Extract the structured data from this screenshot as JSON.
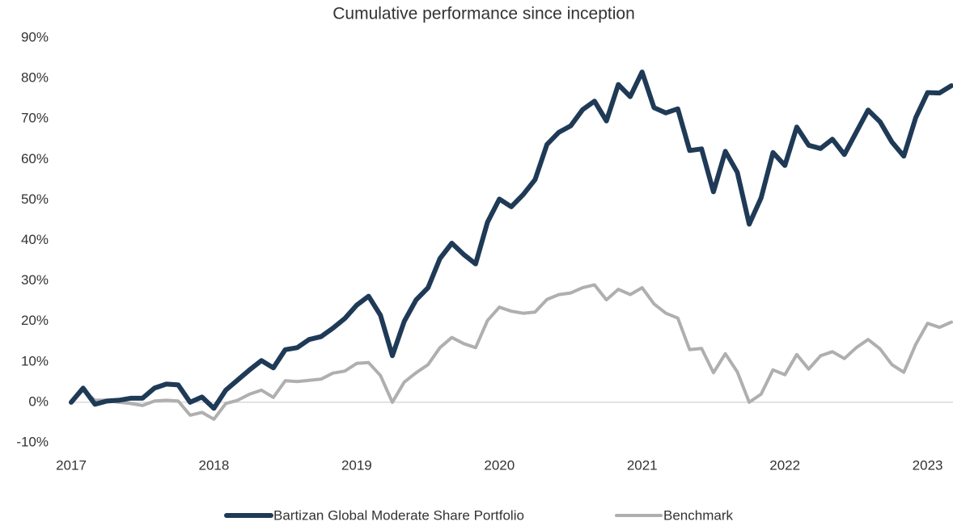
{
  "chart_data": {
    "type": "line",
    "title": "Cumulative performance since inception",
    "categories": [
      "2017",
      null,
      null,
      null,
      null,
      null,
      null,
      null,
      null,
      null,
      null,
      null,
      "2018",
      null,
      null,
      null,
      null,
      null,
      null,
      null,
      null,
      null,
      null,
      null,
      "2019",
      null,
      null,
      null,
      null,
      null,
      null,
      null,
      null,
      null,
      null,
      null,
      "2020",
      null,
      null,
      null,
      null,
      null,
      null,
      null,
      null,
      null,
      null,
      null,
      "2021",
      null,
      null,
      null,
      null,
      null,
      null,
      null,
      null,
      null,
      null,
      null,
      "2022",
      null,
      null,
      null,
      null,
      null,
      null,
      null,
      null,
      null,
      null,
      null,
      "2023",
      null,
      null
    ],
    "series": [
      {
        "name": "Bartizan Global Moderate Share Portfolio",
        "color": "#1f3a56",
        "values": [
          0,
          3.5,
          -0.5,
          0.3,
          0.5,
          1,
          1,
          3.5,
          4.5,
          4.3,
          0,
          1.3,
          -1.5,
          3,
          5.5,
          8,
          10.3,
          8.5,
          13,
          13.5,
          15.5,
          16.2,
          18.3,
          20.7,
          24,
          26.2,
          21.5,
          11.5,
          20,
          25.3,
          28.3,
          35.5,
          39.3,
          36.5,
          34.2,
          44.5,
          50.2,
          48.3,
          51.3,
          55,
          63.7,
          66.7,
          68.3,
          72.3,
          74.4,
          69.5,
          78.5,
          75.5,
          81.6,
          72.8,
          71.5,
          72.5,
          62.2,
          62.6,
          52,
          62,
          56.8,
          44,
          50.5,
          61.7,
          58.5,
          68,
          63.5,
          62.7,
          65,
          61.2,
          66.7,
          72.2,
          69.3,
          64.3,
          60.8,
          70.3,
          76.5,
          76.4,
          78.2
        ]
      },
      {
        "name": "Benchmark",
        "color": "#b0afb0",
        "values": [
          0,
          3,
          0.5,
          0.5,
          0,
          -0.3,
          -0.8,
          0.3,
          0.5,
          0.3,
          -3.2,
          -2.5,
          -4.2,
          -0.3,
          0.5,
          2,
          3,
          1.2,
          5.3,
          5.1,
          5.4,
          5.7,
          7.2,
          7.7,
          9.6,
          9.8,
          6.6,
          0,
          5,
          7.3,
          9.3,
          13.5,
          16,
          14.5,
          13.5,
          20.2,
          23.5,
          22.5,
          22,
          22.3,
          25.4,
          26.6,
          27,
          28.3,
          29,
          25.3,
          27.9,
          26.6,
          28.3,
          24.3,
          22,
          20.8,
          13,
          13.3,
          7.3,
          12,
          7.5,
          0,
          2,
          8,
          6.8,
          11.8,
          8.2,
          11.5,
          12.5,
          10.8,
          13.5,
          15.5,
          13.2,
          9.3,
          7.4,
          14.3,
          19.5,
          18.5,
          19.8
        ]
      }
    ],
    "ylim": [
      -10,
      90
    ],
    "yticks": [
      {
        "value": -10,
        "label": "-10%"
      },
      {
        "value": 0,
        "label": "0%"
      },
      {
        "value": 10,
        "label": "10%"
      },
      {
        "value": 20,
        "label": "20%"
      },
      {
        "value": 30,
        "label": "30%"
      },
      {
        "value": 40,
        "label": "40%"
      },
      {
        "value": 50,
        "label": "50%"
      },
      {
        "value": 60,
        "label": "60%"
      },
      {
        "value": 70,
        "label": "70%"
      },
      {
        "value": 80,
        "label": "80%"
      },
      {
        "value": 90,
        "label": "90%"
      }
    ],
    "legend": "bottom"
  }
}
